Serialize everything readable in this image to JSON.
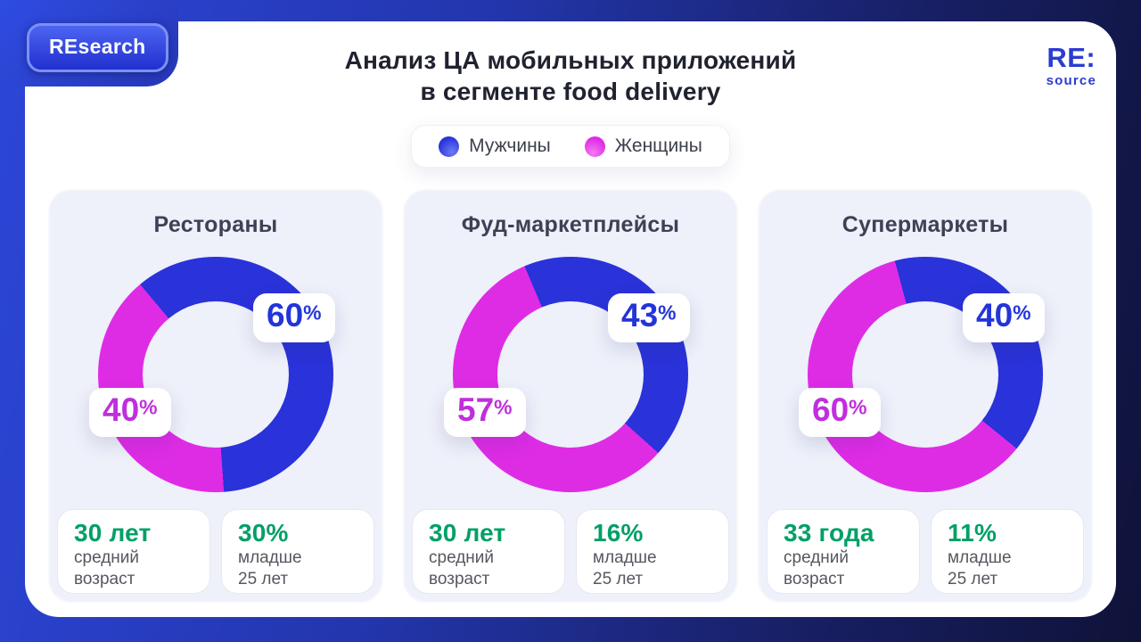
{
  "ui": {
    "percent": "%"
  },
  "badge": {
    "label": "REsearch"
  },
  "logo": {
    "line1": "RE:",
    "line2": "source"
  },
  "header": {
    "title_line1": "Анализ ЦА мобильных приложений",
    "title_line2": "в сегменте food delivery"
  },
  "legend": {
    "items": [
      {
        "label": "Мужчины",
        "color": "#2A32D9"
      },
      {
        "label": "Женщины",
        "color": "#DE2CE5"
      }
    ]
  },
  "colors": {
    "male": "#2A32D9",
    "female": "#DE2CE5",
    "male_text": "#2335D9",
    "female_text": "#C02FDC",
    "green": "#00A066",
    "card_bg": "#EEF0FA",
    "bg_left": "#2C46D8",
    "bg_right": "#0F1238"
  },
  "chart_data": [
    {
      "type": "pie",
      "donut": true,
      "title": "Рестораны",
      "labels": [
        "Мужчины",
        "Женщины"
      ],
      "values": [
        60,
        40
      ],
      "unit": "%",
      "colors": [
        "#2A32D9",
        "#DE2CE5"
      ],
      "start_angle_deg": -40,
      "legend_position": "top"
    },
    {
      "type": "pie",
      "donut": true,
      "title": "Фуд-маркетплейсы",
      "labels": [
        "Мужчины",
        "Женщины"
      ],
      "values": [
        43,
        57
      ],
      "unit": "%",
      "colors": [
        "#2A32D9",
        "#DE2CE5"
      ],
      "start_angle_deg": -23,
      "legend_position": "top"
    },
    {
      "type": "pie",
      "donut": true,
      "title": "Супермаркеты",
      "labels": [
        "Мужчины",
        "Женщины"
      ],
      "values": [
        40,
        60
      ],
      "unit": "%",
      "colors": [
        "#2A32D9",
        "#DE2CE5"
      ],
      "start_angle_deg": -15,
      "legend_position": "top"
    }
  ],
  "cards": [
    {
      "title": "Рестораны",
      "male_pct": "60",
      "female_pct": "40",
      "stats": [
        {
          "value": "30 лет",
          "line1": "средний",
          "line2": "возраст"
        },
        {
          "value": "30%",
          "line1": "младше",
          "line2": "25 лет"
        }
      ]
    },
    {
      "title": "Фуд-маркетплейсы",
      "male_pct": "43",
      "female_pct": "57",
      "stats": [
        {
          "value": "30 лет",
          "line1": "средний",
          "line2": "возраст"
        },
        {
          "value": "16%",
          "line1": "младше",
          "line2": "25 лет"
        }
      ]
    },
    {
      "title": "Супермаркеты",
      "male_pct": "40",
      "female_pct": "60",
      "stats": [
        {
          "value": "33 года",
          "line1": "средний",
          "line2": "возраст"
        },
        {
          "value": "11%",
          "line1": "младше",
          "line2": "25 лет"
        }
      ]
    }
  ]
}
